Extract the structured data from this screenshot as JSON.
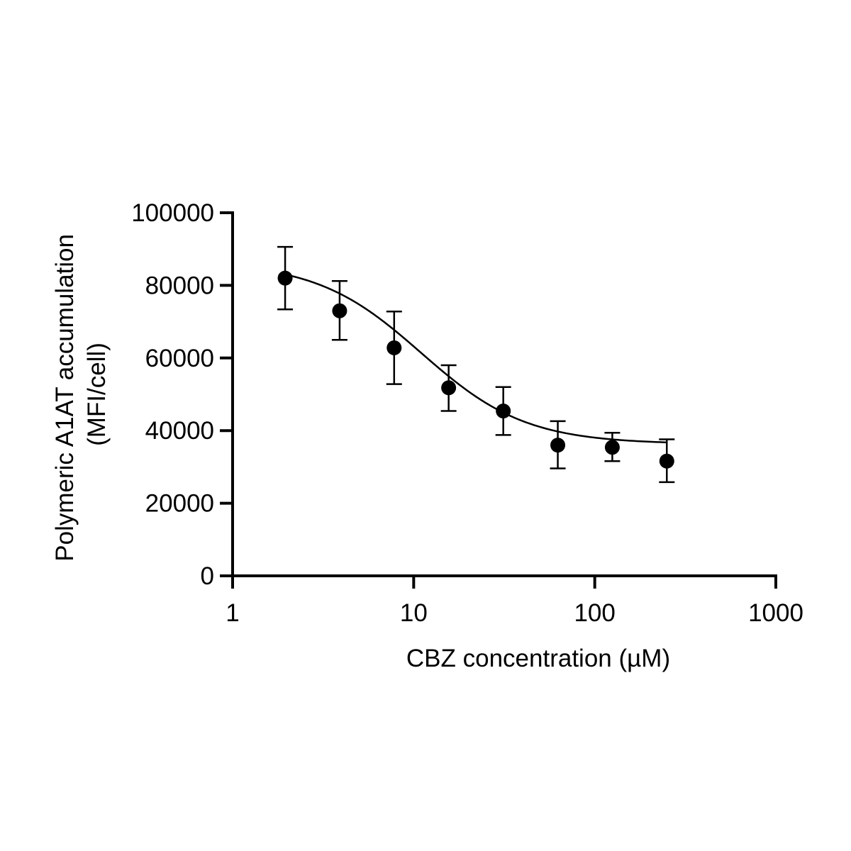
{
  "chart_data": {
    "type": "scatter",
    "title": "",
    "xlabel": "CBZ concentration (µM)",
    "ylabel_lines": [
      "Polymeric A1AT accumulation",
      "(MFI/cell)"
    ],
    "xscale": "log",
    "xlim": [
      1,
      1000
    ],
    "ylim": [
      0,
      100000
    ],
    "x_ticks": [
      1,
      10,
      100,
      1000
    ],
    "x_tick_labels": [
      "1",
      "10",
      "100",
      "1000"
    ],
    "y_ticks": [
      0,
      20000,
      40000,
      60000,
      80000,
      100000
    ],
    "y_tick_labels": [
      "0",
      "20000",
      "40000",
      "60000",
      "80000",
      "100000"
    ],
    "grid": false,
    "legend": "none",
    "series": [
      {
        "x": [
          1.95,
          3.9,
          7.8,
          15.6,
          31.25,
          62.5,
          125,
          250
        ],
        "y": [
          82000,
          73000,
          62800,
          51800,
          45400,
          36000,
          35400,
          31600
        ],
        "error_high": [
          90600,
          81200,
          72800,
          58000,
          52000,
          42600,
          39400,
          37600
        ],
        "error_low": [
          73400,
          65000,
          52800,
          45400,
          38800,
          29600,
          31600,
          25800
        ]
      }
    ],
    "fit_curve": {
      "model": "sigmoidal dose-response",
      "top": 86500,
      "bottom": 36300,
      "ec50": 11,
      "hill_slope": -1.5,
      "x_range": [
        1.95,
        250
      ]
    },
    "colors": {
      "marker": "#000000",
      "line": "#000000"
    }
  }
}
